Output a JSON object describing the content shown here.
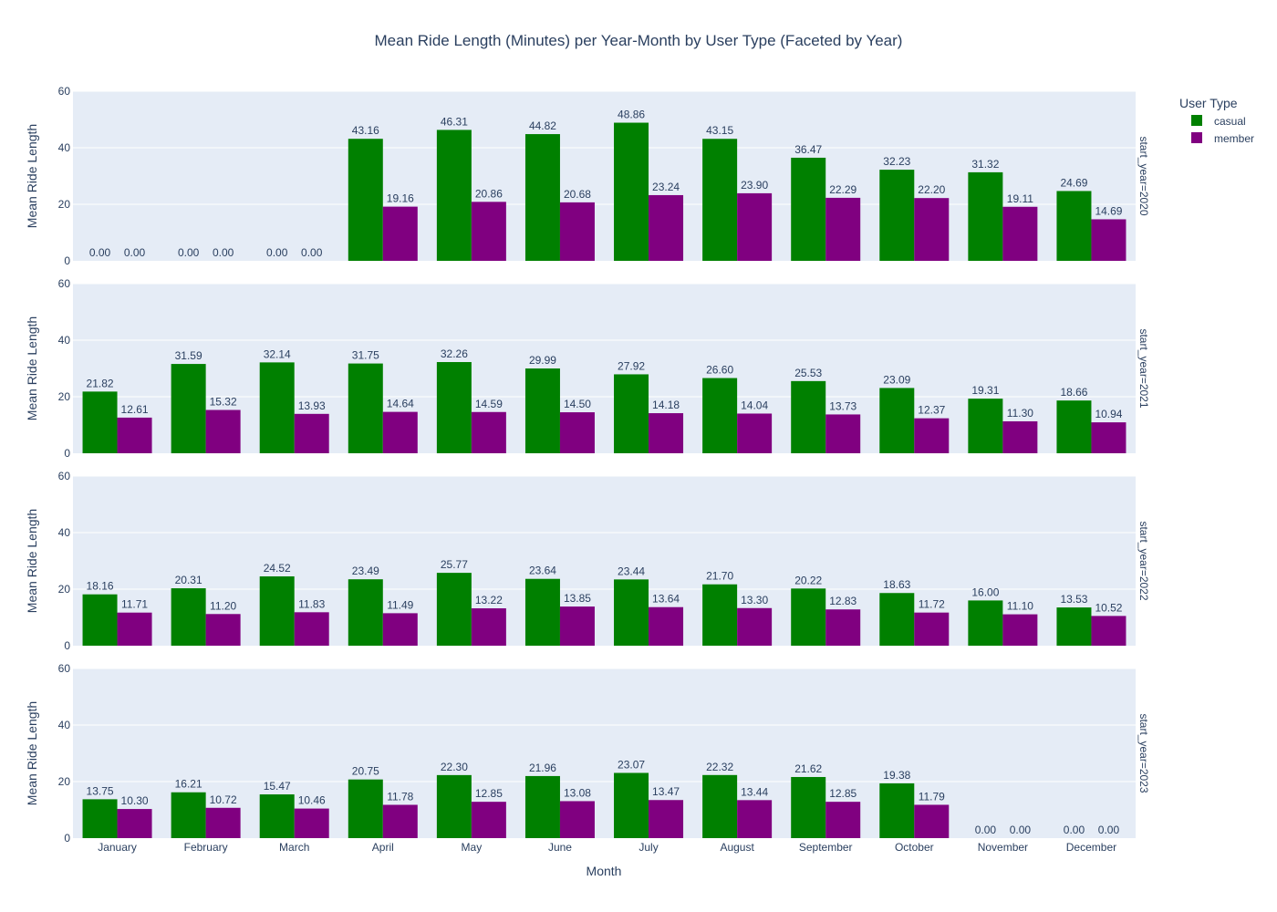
{
  "chart_data": {
    "type": "bar",
    "title": "Mean Ride Length (Minutes) per Year-Month by User Type (Faceted by Year)",
    "xlabel": "Month",
    "ylabel": "Mean Ride Length",
    "ylim": [
      0,
      60
    ],
    "yticks": [
      0,
      20,
      40,
      60
    ],
    "grid": true,
    "legend": {
      "title": "User Type",
      "position": "top-right"
    },
    "categories": [
      "January",
      "February",
      "March",
      "April",
      "May",
      "June",
      "July",
      "August",
      "September",
      "October",
      "November",
      "December"
    ],
    "colors": {
      "casual": "#008000",
      "member": "#800080",
      "plot_bg": "#e5ecf6",
      "text": "#2a3f5f"
    },
    "facets": [
      {
        "label": "start_year=2020",
        "series": [
          {
            "name": "casual",
            "values": [
              0,
              0,
              0,
              43.16,
              46.31,
              44.82,
              48.86,
              43.15,
              36.47,
              32.23,
              31.32,
              24.69
            ]
          },
          {
            "name": "member",
            "values": [
              0,
              0,
              0,
              19.16,
              20.86,
              20.68,
              23.24,
              23.9,
              22.29,
              22.2,
              19.11,
              14.69
            ]
          }
        ]
      },
      {
        "label": "start_year=2021",
        "series": [
          {
            "name": "casual",
            "values": [
              21.82,
              31.59,
              32.14,
              31.75,
              32.26,
              29.99,
              27.92,
              26.6,
              25.53,
              23.09,
              19.31,
              18.66
            ]
          },
          {
            "name": "member",
            "values": [
              12.61,
              15.32,
              13.93,
              14.64,
              14.59,
              14.5,
              14.18,
              14.04,
              13.73,
              12.37,
              11.3,
              10.94
            ]
          }
        ]
      },
      {
        "label": "start_year=2022",
        "series": [
          {
            "name": "casual",
            "values": [
              18.16,
              20.31,
              24.52,
              23.49,
              25.77,
              23.64,
              23.44,
              21.7,
              20.22,
              18.63,
              16.0,
              13.53
            ]
          },
          {
            "name": "member",
            "values": [
              11.71,
              11.2,
              11.83,
              11.49,
              13.22,
              13.85,
              13.64,
              13.3,
              12.83,
              11.72,
              11.1,
              10.52
            ]
          }
        ]
      },
      {
        "label": "start_year=2023",
        "series": [
          {
            "name": "casual",
            "values": [
              13.75,
              16.21,
              15.47,
              20.75,
              22.3,
              21.96,
              23.07,
              22.32,
              21.62,
              19.38,
              0,
              0
            ]
          },
          {
            "name": "member",
            "values": [
              10.3,
              10.72,
              10.46,
              11.78,
              12.85,
              13.08,
              13.47,
              13.44,
              12.85,
              11.79,
              0,
              0
            ]
          }
        ]
      }
    ]
  }
}
